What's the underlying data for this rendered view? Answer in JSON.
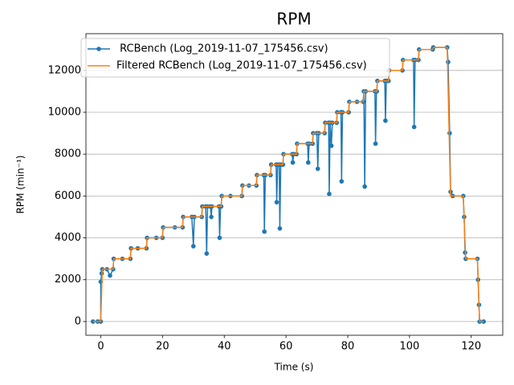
{
  "chart_data": {
    "type": "line",
    "title": "RPM",
    "xlabel": "Time (s)",
    "ylabel": "RPM (min⁻¹)",
    "xlim": [
      -4.8,
      130.2
    ],
    "ylim": [
      -655,
      13755
    ],
    "xticks": [
      0,
      20,
      40,
      60,
      80,
      100,
      120
    ],
    "yticks": [
      0,
      2000,
      4000,
      6000,
      8000,
      10000,
      12000
    ],
    "grid": "y",
    "legend": "upper left",
    "series": [
      {
        "name": " RCBench (Log_2019-11-07_175456.csv)",
        "color": "#1f77b4",
        "marker": true,
        "x": [
          -2.5,
          -1,
          0,
          0,
          0.3,
          0.5,
          2,
          3,
          4,
          4.2,
          7,
          9.6,
          9.8,
          12,
          14.8,
          15,
          18,
          20,
          20.2,
          24,
          26.5,
          26.7,
          29.5,
          30,
          30.3,
          32.7,
          32.9,
          34,
          34.3,
          34.6,
          35.5,
          35.8,
          36,
          38.3,
          38.5,
          38.8,
          39,
          39.2,
          42,
          45.7,
          45.9,
          48,
          50.4,
          50.6,
          52.8,
          53,
          53.3,
          55,
          55.2,
          56.8,
          57,
          57.3,
          57.8,
          58,
          58.3,
          59,
          59.2,
          62,
          62.2,
          62.5,
          63.4,
          63.6,
          67,
          67.2,
          67.5,
          68.6,
          68.8,
          70,
          70.3,
          70.6,
          72.5,
          72.7,
          73.8,
          74,
          74.3,
          74.7,
          75,
          76.4,
          76.6,
          77.8,
          78,
          78.3,
          80.3,
          80.5,
          83,
          85,
          85.2,
          85.5,
          85.8,
          88.8,
          89,
          89.3,
          89.4,
          89.6,
          92,
          92.2,
          92.5,
          93.2,
          93.4,
          97.7,
          97.9,
          101.3,
          101.5,
          101.8,
          102.9,
          103.1,
          107.5,
          107.7,
          112.2,
          112.5,
          113,
          113.3,
          114,
          117.4,
          117.7,
          118,
          118.2,
          122,
          122.2,
          122.5,
          122.7,
          124
        ],
        "values": [
          0,
          0,
          0,
          1900,
          2300,
          2500,
          2500,
          2200,
          2500,
          3000,
          3000,
          3000,
          3500,
          3500,
          3500,
          4000,
          4000,
          4000,
          4500,
          4500,
          4500,
          5000,
          5000,
          3600,
          5000,
          5000,
          5500,
          5500,
          3250,
          5500,
          5500,
          5000,
          5500,
          5500,
          4000,
          5500,
          5500,
          6000,
          6000,
          6000,
          6500,
          6500,
          6500,
          7000,
          7000,
          4300,
          7000,
          7000,
          7500,
          7500,
          5700,
          7500,
          7500,
          4450,
          7500,
          7500,
          8000,
          8000,
          7600,
          8000,
          8000,
          8500,
          8500,
          7600,
          8500,
          8500,
          9000,
          9000,
          7300,
          9000,
          9000,
          9500,
          9500,
          6100,
          9500,
          8400,
          9500,
          9500,
          10000,
          10000,
          6700,
          10000,
          10000,
          10500,
          10500,
          10500,
          11000,
          6450,
          11000,
          11000,
          8500,
          11000,
          11000,
          11500,
          11500,
          9600,
          11500,
          11500,
          12000,
          12000,
          12500,
          12500,
          9300,
          12500,
          12500,
          13000,
          13000,
          13100,
          13100,
          12400,
          9000,
          6200,
          6000,
          6000,
          5000,
          3300,
          3000,
          3000,
          2000,
          800,
          0,
          0
        ]
      },
      {
        "name": "Filtered RCBench (Log_2019-11-07_175456.csv)",
        "color": "#ff7f0e",
        "marker": false,
        "x": [
          -2.5,
          0,
          0.5,
          4,
          4.2,
          9.6,
          9.8,
          14.8,
          15,
          20,
          20.2,
          26.5,
          26.7,
          32.7,
          32.9,
          39,
          39.2,
          45.7,
          45.9,
          50.4,
          50.6,
          55,
          55.2,
          59,
          59.2,
          63.4,
          63.6,
          68.6,
          68.8,
          72.5,
          72.7,
          76.4,
          76.6,
          80.3,
          80.5,
          85,
          85.2,
          89.4,
          89.6,
          93.2,
          93.4,
          97.7,
          97.9,
          102.9,
          103.1,
          107.5,
          107.7,
          112.2,
          113.3,
          117.4,
          118.2,
          122,
          122.7,
          124
        ],
        "values": [
          0,
          0,
          2500,
          2500,
          3000,
          3000,
          3500,
          3500,
          4000,
          4000,
          4500,
          4500,
          5000,
          5000,
          5500,
          5500,
          6000,
          6000,
          6500,
          6500,
          7000,
          7000,
          7500,
          7500,
          8000,
          8000,
          8500,
          8500,
          9000,
          9000,
          9500,
          9500,
          10000,
          10000,
          10500,
          10500,
          11000,
          11000,
          11500,
          11500,
          12000,
          12000,
          12500,
          12500,
          13000,
          13000,
          13100,
          13100,
          6000,
          6000,
          3000,
          3000,
          0,
          0
        ]
      }
    ]
  }
}
